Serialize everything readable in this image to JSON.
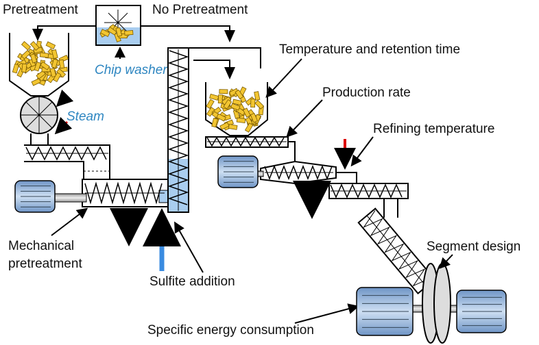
{
  "labels": {
    "pretreatment": "Pretreatment",
    "no_pretreatment": "No Pretreatment",
    "chip_washer": "Chip washer",
    "steam": "Steam",
    "temperature_retention": "Temperature and retention time",
    "production_rate": "Production rate",
    "refining_temperature": "Refining temperature",
    "mechanical_pretreatment": [
      "Mechanical",
      "pretreatment"
    ],
    "sulfite_addition": "Sulfite addition",
    "segment_design": "Segment design",
    "specific_energy": "Specific energy consumption"
  }
}
